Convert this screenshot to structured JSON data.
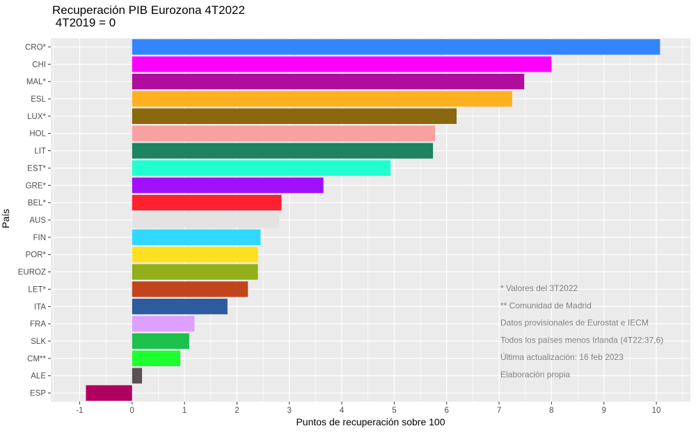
{
  "chart_data": {
    "type": "bar",
    "orientation": "horizontal",
    "title": "Recuperación PIB Eurozona 4T2022",
    "subtitle": "4T2019 = 0",
    "xlabel": "Puntos de recuperación sobre 100",
    "ylabel": "País",
    "xlim": [
      -1.55,
      10.65
    ],
    "xticks": [
      -1,
      0,
      1,
      2,
      3,
      4,
      5,
      6,
      7,
      8,
      9,
      10
    ],
    "grid": true,
    "categories": [
      "CRO*",
      "CHI",
      "MAL*",
      "ESL",
      "LUX*",
      "HOL",
      "LIT",
      "EST*",
      "GRE*",
      "BEL*",
      "AUS",
      "FIN",
      "POR*",
      "EUROZ",
      "LET*",
      "ITA",
      "FRA",
      "SLK",
      "CM**",
      "ALE",
      "ESP"
    ],
    "values": [
      10.07,
      8.0,
      7.48,
      7.25,
      6.19,
      5.78,
      5.74,
      4.93,
      3.65,
      2.85,
      2.81,
      2.45,
      2.4,
      2.4,
      2.21,
      1.82,
      1.19,
      1.09,
      0.92,
      0.19,
      -0.88
    ],
    "colors": [
      "#3385FF",
      "#FF00FF",
      "#B00C9E",
      "#FFB020",
      "#8A6810",
      "#F9A0A0",
      "#1C8460",
      "#20FFD0",
      "#A010FF",
      "#FF2030",
      "#E3E3E3",
      "#30D8FF",
      "#FFE020",
      "#93B01A",
      "#C2441C",
      "#2E5B9E",
      "#DDA0FF",
      "#1DBF4D",
      "#1DFF30",
      "#5A5055",
      "#B00060"
    ],
    "annotations": [
      "* Valores del 3T2022",
      "** Comunidad de Madrid",
      "Datos provisionales de Eurostat e IECM",
      "Todos los países menos Irlanda (4T22:37,6)",
      "Última actualización: 16 feb 2023",
      "Elaboración propia"
    ]
  }
}
